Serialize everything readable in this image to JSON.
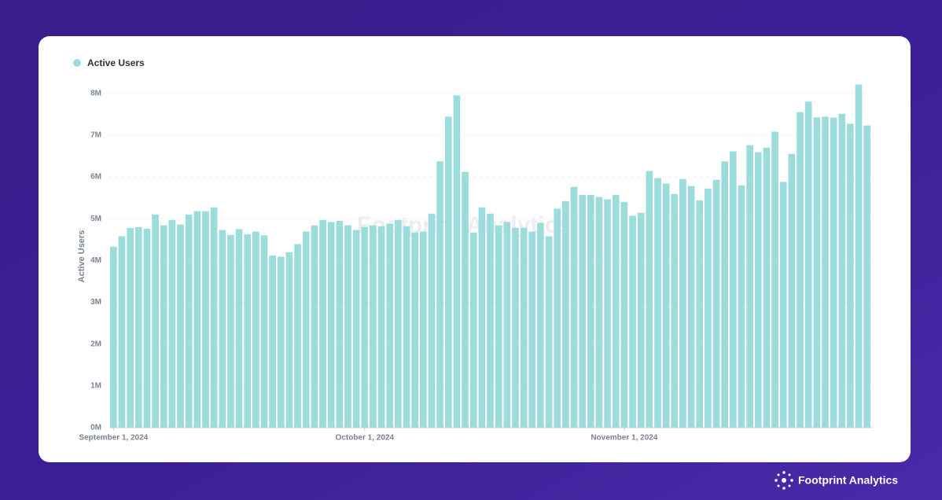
{
  "chart_data": {
    "type": "bar",
    "legend": "Active Users",
    "y_label": "Active Users",
    "color": "#9cdcdc",
    "grid": true,
    "x": [
      "2024-09-01",
      "2024-09-02",
      "2024-09-03",
      "2024-09-04",
      "2024-09-05",
      "2024-09-06",
      "2024-09-07",
      "2024-09-08",
      "2024-09-09",
      "2024-09-10",
      "2024-09-11",
      "2024-09-12",
      "2024-09-13",
      "2024-09-14",
      "2024-09-15",
      "2024-09-16",
      "2024-09-17",
      "2024-09-18",
      "2024-09-19",
      "2024-09-20",
      "2024-09-21",
      "2024-09-22",
      "2024-09-23",
      "2024-09-24",
      "2024-09-25",
      "2024-09-26",
      "2024-09-27",
      "2024-09-28",
      "2024-09-29",
      "2024-09-30",
      "2024-10-01",
      "2024-10-02",
      "2024-10-03",
      "2024-10-04",
      "2024-10-05",
      "2024-10-06",
      "2024-10-07",
      "2024-10-08",
      "2024-10-09",
      "2024-10-10",
      "2024-10-11",
      "2024-10-12",
      "2024-10-13",
      "2024-10-14",
      "2024-10-15",
      "2024-10-16",
      "2024-10-17",
      "2024-10-18",
      "2024-10-19",
      "2024-10-20",
      "2024-10-21",
      "2024-10-22",
      "2024-10-23",
      "2024-10-24",
      "2024-10-25",
      "2024-10-26",
      "2024-10-27",
      "2024-10-28",
      "2024-10-29",
      "2024-10-30",
      "2024-10-31",
      "2024-11-01",
      "2024-11-02",
      "2024-11-03",
      "2024-11-04",
      "2024-11-05",
      "2024-11-06",
      "2024-11-07",
      "2024-11-08",
      "2024-11-09",
      "2024-11-10",
      "2024-11-11",
      "2024-11-12",
      "2024-11-13",
      "2024-11-14",
      "2024-11-15",
      "2024-11-16",
      "2024-11-17",
      "2024-11-18",
      "2024-11-19",
      "2024-11-20",
      "2024-11-21",
      "2024-11-22",
      "2024-11-23",
      "2024-11-24",
      "2024-11-25",
      "2024-11-26",
      "2024-11-27",
      "2024-11-28",
      "2024-11-29",
      "2024-11-30"
    ],
    "values": [
      4.33,
      4.58,
      4.78,
      4.8,
      4.76,
      5.1,
      4.84,
      4.97,
      4.86,
      5.1,
      5.18,
      5.18,
      5.27,
      4.73,
      4.61,
      4.75,
      4.63,
      4.69,
      4.6,
      4.12,
      4.09,
      4.2,
      4.39,
      4.69,
      4.84,
      4.97,
      4.92,
      4.95,
      4.84,
      4.73,
      4.8,
      4.84,
      4.82,
      4.88,
      4.97,
      4.82,
      4.67,
      4.69,
      5.12,
      6.37,
      7.44,
      7.95,
      6.12,
      4.67,
      5.27,
      5.12,
      4.84,
      4.92,
      4.78,
      4.78,
      4.69,
      4.9,
      4.58,
      5.24,
      5.42,
      5.76,
      5.57,
      5.57,
      5.52,
      5.46,
      5.57,
      5.4,
      5.07,
      5.14,
      6.14,
      5.97,
      5.84,
      5.59,
      5.95,
      5.78,
      5.44,
      5.72,
      5.93,
      6.37,
      6.61,
      5.8,
      6.76,
      6.59,
      6.7,
      7.08,
      5.88,
      6.55,
      7.55,
      7.8,
      7.42,
      7.44,
      7.42,
      7.51,
      7.27,
      8.21,
      7.23
    ],
    "ylim": [
      0,
      8.2
    ],
    "yticks": [
      {
        "value": 0,
        "label": "0M"
      },
      {
        "value": 1,
        "label": "1M"
      },
      {
        "value": 2,
        "label": "2M"
      },
      {
        "value": 3,
        "label": "3M"
      },
      {
        "value": 4,
        "label": "4M"
      },
      {
        "value": 5,
        "label": "5M"
      },
      {
        "value": 6,
        "label": "6M"
      },
      {
        "value": 7,
        "label": "7M"
      },
      {
        "value": 8,
        "label": "8M"
      }
    ],
    "xticks": [
      {
        "value": "2024-09-01",
        "label": "September 1, 2024"
      },
      {
        "value": "2024-10-01",
        "label": "October 1, 2024"
      },
      {
        "value": "2024-11-01",
        "label": "November 1, 2024"
      }
    ],
    "watermark": "Footprint Analytics"
  },
  "brand": "Footprint Analytics"
}
